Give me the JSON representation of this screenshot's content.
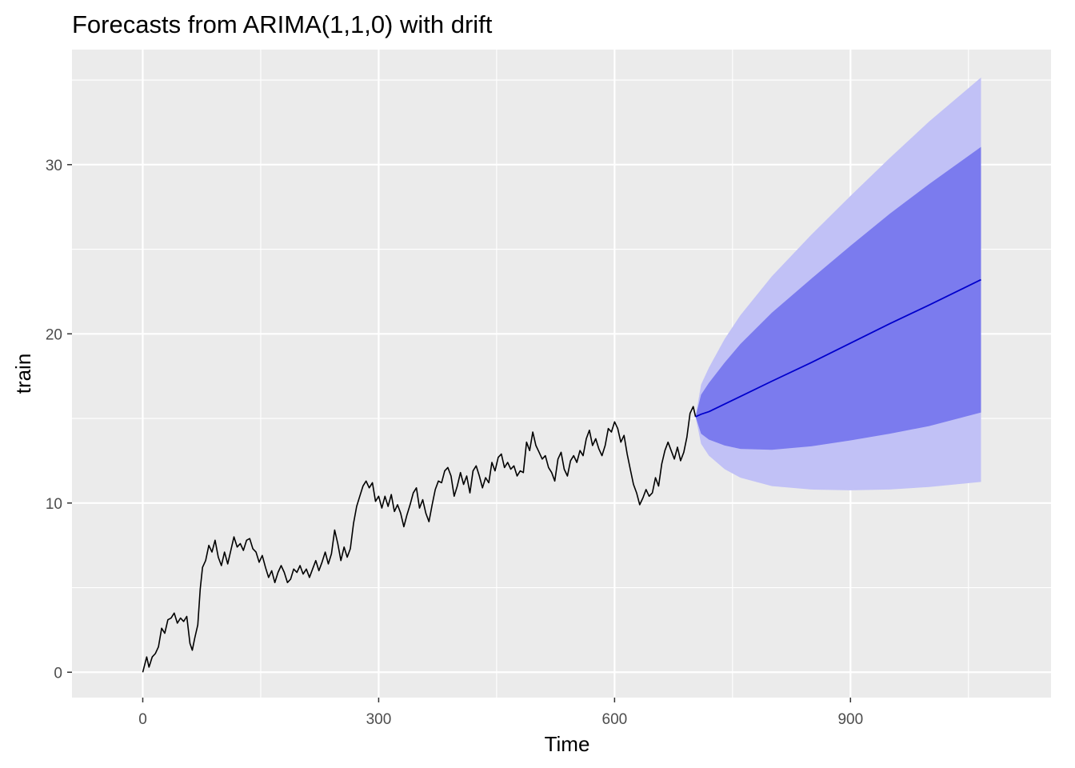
{
  "chart_data": {
    "type": "line",
    "title": "Forecasts from ARIMA(1,1,0) with drift",
    "xlabel": "Time",
    "ylabel": "train",
    "xlim": [
      -90,
      1155
    ],
    "ylim": [
      -1.5,
      36.8
    ],
    "x_ticks": [
      {
        "value": 0,
        "label": "0"
      },
      {
        "value": 300,
        "label": "300"
      },
      {
        "value": 600,
        "label": "600"
      },
      {
        "value": 900,
        "label": "900"
      }
    ],
    "y_ticks": [
      {
        "value": 0,
        "label": "0"
      },
      {
        "value": 10,
        "label": "10"
      },
      {
        "value": 20,
        "label": "20"
      },
      {
        "value": 30,
        "label": "30"
      }
    ],
    "x_minor": [
      150,
      450,
      750,
      1050
    ],
    "y_minor": [
      5,
      15,
      25,
      35
    ],
    "grid": true,
    "legend": "none",
    "colors": {
      "panel": "#ebebeb",
      "grid": "#ffffff",
      "series": "#000000",
      "forecast": "#0000cc",
      "band80": "#7b7bee",
      "band95": "#c1c1f6"
    },
    "series": [
      {
        "values": [
          [
            0,
            0.0
          ],
          [
            5,
            0.9
          ],
          [
            8,
            0.3
          ],
          [
            12,
            0.9
          ],
          [
            16,
            1.1
          ],
          [
            20,
            1.5
          ],
          [
            24,
            2.6
          ],
          [
            28,
            2.3
          ],
          [
            32,
            3.1
          ],
          [
            36,
            3.2
          ],
          [
            40,
            3.5
          ],
          [
            44,
            2.9
          ],
          [
            48,
            3.2
          ],
          [
            52,
            3.0
          ],
          [
            56,
            3.3
          ],
          [
            60,
            1.7
          ],
          [
            63,
            1.3
          ],
          [
            66,
            2.0
          ],
          [
            70,
            2.8
          ],
          [
            73,
            4.9
          ],
          [
            76,
            6.2
          ],
          [
            80,
            6.6
          ],
          [
            84,
            7.5
          ],
          [
            88,
            7.1
          ],
          [
            92,
            7.8
          ],
          [
            96,
            6.8
          ],
          [
            100,
            6.3
          ],
          [
            104,
            7.1
          ],
          [
            108,
            6.4
          ],
          [
            112,
            7.2
          ],
          [
            116,
            8.0
          ],
          [
            120,
            7.4
          ],
          [
            124,
            7.6
          ],
          [
            128,
            7.2
          ],
          [
            132,
            7.8
          ],
          [
            136,
            7.9
          ],
          [
            140,
            7.3
          ],
          [
            144,
            7.1
          ],
          [
            148,
            6.5
          ],
          [
            152,
            6.9
          ],
          [
            156,
            6.2
          ],
          [
            160,
            5.6
          ],
          [
            164,
            6.0
          ],
          [
            168,
            5.3
          ],
          [
            172,
            5.9
          ],
          [
            176,
            6.3
          ],
          [
            180,
            5.9
          ],
          [
            184,
            5.3
          ],
          [
            188,
            5.5
          ],
          [
            192,
            6.1
          ],
          [
            196,
            5.9
          ],
          [
            200,
            6.3
          ],
          [
            204,
            5.8
          ],
          [
            208,
            6.1
          ],
          [
            212,
            5.6
          ],
          [
            216,
            6.1
          ],
          [
            220,
            6.6
          ],
          [
            224,
            6.0
          ],
          [
            228,
            6.5
          ],
          [
            232,
            7.1
          ],
          [
            236,
            6.4
          ],
          [
            240,
            7.0
          ],
          [
            244,
            8.4
          ],
          [
            248,
            7.6
          ],
          [
            252,
            6.6
          ],
          [
            256,
            7.4
          ],
          [
            260,
            6.8
          ],
          [
            264,
            7.3
          ],
          [
            268,
            8.8
          ],
          [
            272,
            9.8
          ],
          [
            276,
            10.4
          ],
          [
            280,
            11.0
          ],
          [
            284,
            11.3
          ],
          [
            288,
            10.9
          ],
          [
            292,
            11.2
          ],
          [
            296,
            10.1
          ],
          [
            300,
            10.4
          ],
          [
            304,
            9.7
          ],
          [
            308,
            10.4
          ],
          [
            312,
            9.8
          ],
          [
            316,
            10.5
          ],
          [
            320,
            9.5
          ],
          [
            324,
            9.9
          ],
          [
            328,
            9.4
          ],
          [
            332,
            8.6
          ],
          [
            336,
            9.3
          ],
          [
            340,
            9.9
          ],
          [
            344,
            10.6
          ],
          [
            348,
            10.9
          ],
          [
            352,
            9.7
          ],
          [
            356,
            10.2
          ],
          [
            360,
            9.4
          ],
          [
            364,
            8.9
          ],
          [
            368,
            9.9
          ],
          [
            372,
            10.8
          ],
          [
            376,
            11.3
          ],
          [
            380,
            11.2
          ],
          [
            384,
            11.9
          ],
          [
            388,
            12.1
          ],
          [
            392,
            11.6
          ],
          [
            396,
            10.4
          ],
          [
            400,
            11.0
          ],
          [
            404,
            11.8
          ],
          [
            408,
            11.1
          ],
          [
            412,
            11.6
          ],
          [
            416,
            10.6
          ],
          [
            420,
            11.9
          ],
          [
            424,
            12.2
          ],
          [
            428,
            11.6
          ],
          [
            432,
            10.9
          ],
          [
            436,
            11.5
          ],
          [
            440,
            11.2
          ],
          [
            444,
            12.4
          ],
          [
            448,
            11.9
          ],
          [
            452,
            12.7
          ],
          [
            456,
            12.9
          ],
          [
            460,
            12.1
          ],
          [
            464,
            12.4
          ],
          [
            468,
            12.0
          ],
          [
            472,
            12.2
          ],
          [
            476,
            11.6
          ],
          [
            480,
            11.9
          ],
          [
            484,
            11.8
          ],
          [
            488,
            13.6
          ],
          [
            492,
            13.1
          ],
          [
            496,
            14.2
          ],
          [
            500,
            13.4
          ],
          [
            504,
            13.0
          ],
          [
            508,
            12.6
          ],
          [
            512,
            12.8
          ],
          [
            516,
            12.1
          ],
          [
            520,
            11.8
          ],
          [
            524,
            11.3
          ],
          [
            528,
            12.6
          ],
          [
            532,
            13.0
          ],
          [
            536,
            12.0
          ],
          [
            540,
            11.6
          ],
          [
            544,
            12.5
          ],
          [
            548,
            12.8
          ],
          [
            552,
            12.4
          ],
          [
            556,
            13.1
          ],
          [
            560,
            12.8
          ],
          [
            564,
            13.8
          ],
          [
            568,
            14.3
          ],
          [
            572,
            13.4
          ],
          [
            576,
            13.8
          ],
          [
            580,
            13.2
          ],
          [
            584,
            12.8
          ],
          [
            588,
            13.4
          ],
          [
            592,
            14.4
          ],
          [
            596,
            14.2
          ],
          [
            600,
            14.8
          ],
          [
            604,
            14.4
          ],
          [
            608,
            13.6
          ],
          [
            612,
            14.0
          ],
          [
            616,
            12.9
          ],
          [
            620,
            12.0
          ],
          [
            624,
            11.1
          ],
          [
            628,
            10.6
          ],
          [
            632,
            9.9
          ],
          [
            636,
            10.3
          ],
          [
            640,
            10.8
          ],
          [
            644,
            10.4
          ],
          [
            648,
            10.6
          ],
          [
            652,
            11.5
          ],
          [
            656,
            11.0
          ],
          [
            660,
            12.3
          ],
          [
            664,
            13.1
          ],
          [
            668,
            13.6
          ],
          [
            672,
            13.1
          ],
          [
            676,
            12.6
          ],
          [
            680,
            13.3
          ],
          [
            684,
            12.5
          ],
          [
            688,
            13.0
          ],
          [
            692,
            13.9
          ],
          [
            696,
            15.3
          ],
          [
            700,
            15.7
          ],
          [
            703,
            15.1
          ]
        ]
      }
    ],
    "forecast": {
      "x": [
        703,
        710,
        720,
        740,
        760,
        800,
        850,
        900,
        950,
        1000,
        1066
      ],
      "mean": [
        15.1,
        15.25,
        15.4,
        15.85,
        16.3,
        17.2,
        18.3,
        19.45,
        20.6,
        21.7,
        23.2
      ],
      "lo80": [
        15.1,
        14.1,
        13.75,
        13.4,
        13.2,
        13.15,
        13.35,
        13.7,
        14.1,
        14.55,
        15.35
      ],
      "hi80": [
        15.1,
        16.4,
        17.1,
        18.3,
        19.4,
        21.25,
        23.25,
        25.2,
        27.1,
        28.85,
        31.05
      ],
      "lo95": [
        15.1,
        13.5,
        12.8,
        12.0,
        11.5,
        11.0,
        10.8,
        10.75,
        10.8,
        10.95,
        11.25
      ],
      "hi95": [
        15.1,
        17.0,
        18.0,
        19.7,
        21.1,
        23.4,
        25.85,
        28.15,
        30.4,
        32.55,
        35.15
      ]
    }
  }
}
